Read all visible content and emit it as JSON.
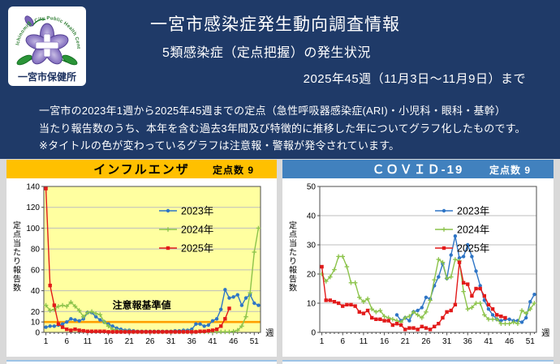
{
  "header": {
    "bg": "#1f3a68",
    "logo": {
      "org_en": "Ichinomiya City Public Health Center",
      "org_ja": "一宮市保健所"
    },
    "title": "一宮市感染症発生動向調査情報",
    "subtitle": "5類感染症（定点把握）の発生状況",
    "period": "2025年45週（11月3日～11月9日）まで",
    "description_lines": [
      "一宮市の2023年1週から2025年45週までの定点（急性呼吸器感染症(ARI)・小児科・眼科・基幹）",
      "当たり報告数のうち、本年を含む過去3年間及び特徴的に推移した年についてグラフ化したものです。",
      "※タイトルの色が変わっているグラフは注意報・警報が発令されています。"
    ]
  },
  "panels": [
    {
      "title": "インフルエンザ",
      "sentinel_label": "定点数 9",
      "header_bg": "#ffc000",
      "header_fg": "#000000",
      "chart_name": "influenza-chart"
    },
    {
      "title": "ＣＯＶＩＤ-19",
      "sentinel_label": "定点数 9",
      "header_bg": "#4181be",
      "header_fg": "#ffffff",
      "chart_name": "covid19-chart"
    }
  ],
  "chart_data": [
    {
      "type": "line",
      "title": "インフルエンザ",
      "ylabel": "定点当たり報告数",
      "xlabel": "週",
      "ylim": [
        0,
        140
      ],
      "xlim": [
        1,
        52
      ],
      "yticks": [
        0,
        10,
        20,
        40,
        60,
        80,
        100,
        120,
        140
      ],
      "gridlines": [
        20,
        40,
        60,
        80,
        100,
        120
      ],
      "xticks": [
        1,
        6,
        11,
        16,
        21,
        26,
        31,
        36,
        41,
        46,
        51
      ],
      "plot_bg": "#ffffa0",
      "grid_color": "#bdbdbd",
      "border_color": "#4d4d4d",
      "legend_position": "top-right-inside",
      "threshold": {
        "value": 10,
        "color": "#ff9f00",
        "label": "注意報基準値",
        "label_x": 24,
        "label_y": 23
      },
      "series": [
        {
          "name": "2023年",
          "color": "#2e75c6",
          "marker": "circle",
          "start_week": 1,
          "values": [
            5,
            6,
            6,
            7,
            8,
            10,
            13,
            12,
            11,
            13,
            19,
            19,
            15,
            12,
            10,
            8,
            6,
            4,
            3,
            2,
            2,
            1.5,
            1,
            1,
            1,
            1,
            1,
            1,
            1,
            1,
            1,
            1.5,
            1.5,
            2,
            2,
            3,
            8,
            8,
            6,
            7,
            11,
            13,
            22,
            41,
            33,
            34,
            36,
            26,
            33,
            36,
            28,
            26
          ]
        },
        {
          "name": "2024年",
          "color": "#8cc34b",
          "marker": "plus",
          "start_week": 1,
          "values": [
            26,
            21,
            22,
            25,
            26,
            25,
            29,
            25,
            21,
            15,
            19,
            20,
            18,
            17,
            10,
            6,
            3,
            2,
            1,
            1,
            1,
            0.5,
            0.5,
            0.5,
            0.5,
            0.5,
            0.5,
            0.5,
            0.5,
            0.5,
            0.5,
            0.5,
            0.5,
            0.5,
            0.5,
            0.5,
            0.5,
            0.5,
            0.5,
            0.5,
            0.5,
            0.5,
            0.5,
            0.5,
            0.5,
            1,
            2,
            6,
            15,
            38,
            77,
            100
          ]
        },
        {
          "name": "2025年",
          "color": "#e21a1a",
          "marker": "square",
          "start_week": 1,
          "values": [
            138,
            45,
            26,
            8,
            5,
            3,
            2,
            3,
            2,
            1.5,
            1,
            1,
            1,
            1,
            1,
            0.5,
            0.5,
            0.5,
            0.5,
            0.5,
            0.5,
            0.5,
            0.5,
            0.5,
            0.5,
            0.5,
            0.5,
            0.5,
            0.5,
            0.5,
            0.5,
            0.5,
            0.5,
            0.5,
            0.5,
            0.5,
            0.5,
            1,
            1,
            1.5,
            2,
            3,
            6,
            13,
            23
          ]
        }
      ]
    },
    {
      "type": "line",
      "title": "COVID-19",
      "ylabel": "定点当たり報告数",
      "xlabel": "週",
      "ylim": [
        0,
        50
      ],
      "xlim": [
        1,
        52
      ],
      "yticks": [
        0,
        10,
        20,
        30,
        40,
        50
      ],
      "gridlines": [
        10,
        20,
        30,
        40
      ],
      "xticks": [
        1,
        6,
        11,
        16,
        21,
        26,
        31,
        36,
        41,
        46,
        51
      ],
      "plot_bg": "#ffffff",
      "grid_color": "#bdbdbd",
      "border_color": "#4d4d4d",
      "legend_position": "top-right-inside",
      "series": [
        {
          "name": "2023年",
          "color": "#2e75c6",
          "marker": "circle",
          "start_week": 19,
          "values": [
            6,
            4,
            5,
            4,
            7,
            7.5,
            8.5,
            12,
            11.5,
            16,
            19,
            23.5,
            18.5,
            26.5,
            33,
            25.5,
            26,
            30,
            26,
            21,
            16,
            11,
            8,
            6,
            4.5,
            4,
            4.5,
            4.5,
            4,
            4,
            3.5,
            5,
            10.5,
            13
          ]
        },
        {
          "name": "2024年",
          "color": "#8cc34b",
          "marker": "plus",
          "start_week": 1,
          "values": [
            20,
            17.5,
            19,
            21.5,
            26,
            26,
            22.5,
            17,
            17,
            12,
            10.5,
            11.5,
            8,
            7,
            7.5,
            5.5,
            5,
            4.5,
            4,
            3.5,
            5,
            5.5,
            7,
            6,
            5,
            7,
            11,
            18,
            25,
            24,
            18.5,
            19,
            25,
            24.5,
            14,
            8,
            8.5,
            10,
            10,
            6,
            4.5,
            4.5,
            4.5,
            3,
            3,
            3,
            3.5,
            3,
            7.5,
            6.5,
            8,
            10
          ]
        },
        {
          "name": "2025年",
          "color": "#e21a1a",
          "marker": "square",
          "start_week": 1,
          "values": [
            22.5,
            11,
            11,
            10.5,
            10,
            9,
            9.5,
            9.5,
            9,
            7,
            6.5,
            7.5,
            5,
            4.5,
            4.5,
            4,
            4,
            2.5,
            3,
            2.5,
            1,
            1.5,
            1.5,
            1,
            2,
            1.5,
            1,
            2,
            3,
            5,
            7,
            7.5,
            9.5,
            24,
            17,
            16.5,
            12.5,
            15,
            15,
            12.5,
            9.5,
            8,
            6,
            5.5,
            5
          ]
        }
      ]
    }
  ]
}
